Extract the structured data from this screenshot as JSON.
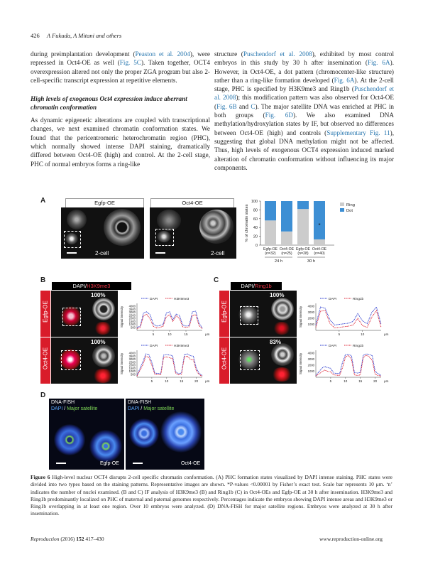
{
  "header": {
    "page_number": "426",
    "authors": "A Fukuda, A Mitani and others"
  },
  "left_col": {
    "p1_a": "during preimplantation development (",
    "p1_ref1": "Peaston et al. 2004",
    "p1_b": "), were repressed in Oct4-OE as well (",
    "p1_ref2": "Fig. 5C",
    "p1_c": "). Taken together, OCT4 overexpression altered not only the proper ZGA program but also 2-cell-specific transcript expression at repetitive elements.",
    "heading": "High levels of exogenous Oct4 expression induce aberrant chromatin conformation",
    "p2": "As dynamic epigenetic alterations are coupled with transcriptional changes, we next examined chromatin conformation states. We found that the pericentromeric heterochromatin region (PHC), which normally showed intense DAPI staining, dramatically differed between Oct4-OE (high) and control. At the 2-cell stage, PHC of normal embryos forms a ring-like"
  },
  "right_col": {
    "a": "structure (",
    "ref1": "Puschendorf et al. 2008",
    "b": "), exhibited by most control embryos in this study by 30 h after insemination (",
    "ref2": "Fig. 6A",
    "c": "). However, in Oct4-OE, a dot pattern (chromocenter-like structure) rather than a ring-like formation developed (",
    "ref3": "Fig. 6A",
    "d": "). At the 2-cell stage, PHC is specified by H3K9me3 and Ring1b (",
    "ref4": "Puschendorf et al. 2008",
    "e": "); this modification pattern was also observed for Oct4-OE (",
    "ref5": "Fig. 6B",
    "f": " and ",
    "ref6": "C",
    "g": "). The major satellite DNA was enriched at PHC in both groups (",
    "ref7": "Fig. 6D",
    "h": "). We also examined DNA methylation/hydroxylation states by IF, but observed no differences between Oct4-OE (high) and controls (",
    "ref8": "Supplementary Fig. 11",
    "i": "), suggesting that global DNA methylation might not be affected. Thus, high levels of exogenous OCT4 expression induced marked alteration of chromatin conformation without influencing its major components."
  },
  "figure": {
    "panel_a": {
      "letter": "A",
      "egfp_title": "Egfp-OE",
      "oct4_title": "Oct4-OE",
      "stage_label": "2-cell"
    },
    "panel_b": {
      "letter": "B",
      "title_dapi": "DAPI/",
      "title_mark": "H3K9me3",
      "row1": "Egfp-OE",
      "row2": "Oct4-OE",
      "pct1": "100%",
      "pct2": "100%"
    },
    "panel_c": {
      "letter": "C",
      "title_dapi": "DAPI/",
      "title_mark": "Ring1b",
      "row1": "Egfp-OE",
      "row2": "Oct4-OE",
      "pct1": "100%",
      "pct2": "83%"
    },
    "panel_d": {
      "letter": "D",
      "label1": "DNA-FISH",
      "label2_dapi": "DAPI",
      "label2_sep": " / ",
      "label2_sat": "Major satellite",
      "img1": "Egfp-OE",
      "img2": "Oct4-OE"
    },
    "colors": {
      "dapi_blue": "#2233cc",
      "mark_red": "#dd2233",
      "ring_grey": "#cccccc",
      "dot_blue": "#3d8fd4",
      "sat_green": "#7ed957"
    }
  },
  "chart_data": [
    {
      "type": "bar",
      "stacked": true,
      "ylabel": "% of chromatin states",
      "ylim": [
        0,
        100
      ],
      "yticks": [
        0,
        20,
        40,
        60,
        80,
        100
      ],
      "categories": [
        "Egfp-OE",
        "Oct4-OE",
        "Egfp-OE",
        "Oct4-OE"
      ],
      "n_labels": [
        "(n=32)",
        "(n=25)",
        "(n=28)",
        "(n=40)"
      ],
      "groups": [
        "24 h",
        "30 h"
      ],
      "series": [
        {
          "name": "Ring",
          "values": [
            56,
            31,
            82,
            13
          ]
        },
        {
          "name": "Dot",
          "values": [
            44,
            69,
            18,
            87
          ]
        }
      ],
      "annotation": "*",
      "legend": "top-right"
    },
    {
      "type": "line",
      "panel": "B-Egfp-OE",
      "ylabel": "Signal intensity",
      "xunit": "μm",
      "xticks": [
        5,
        10,
        15
      ],
      "yticks": [
        500,
        1000,
        1500,
        2000,
        2500,
        3000,
        3500,
        4000
      ],
      "ylim": [
        0,
        4500
      ],
      "xlim": [
        0,
        20
      ],
      "series": [
        {
          "name": "DAPI",
          "x": [
            0,
            1,
            2,
            3,
            4,
            5,
            6,
            7,
            8,
            9,
            10,
            11,
            12,
            13,
            14,
            15,
            16,
            17,
            18,
            19,
            20
          ],
          "y": [
            500,
            700,
            2900,
            3100,
            2600,
            1100,
            700,
            800,
            1000,
            2900,
            3100,
            1800,
            2700,
            2500,
            900,
            700,
            800,
            3100,
            3200,
            1200,
            400
          ]
        },
        {
          "name": "H3K9me3",
          "x": [
            0,
            1,
            2,
            3,
            4,
            5,
            6,
            7,
            8,
            9,
            10,
            11,
            12,
            13,
            14,
            15,
            16,
            17,
            18,
            19,
            20
          ],
          "y": [
            300,
            500,
            2400,
            2700,
            1900,
            700,
            400,
            500,
            700,
            2300,
            2600,
            1500,
            2400,
            2000,
            600,
            500,
            600,
            2500,
            2600,
            800,
            300
          ]
        }
      ]
    },
    {
      "type": "line",
      "panel": "B-Oct4-OE",
      "ylabel": "Signal intensity",
      "xunit": "μm",
      "xticks": [
        5,
        10,
        15,
        20
      ],
      "yticks": [
        500,
        1000,
        1500,
        2000,
        2500,
        3000,
        3500,
        4000
      ],
      "ylim": [
        0,
        4500
      ],
      "xlim": [
        0,
        22
      ],
      "series": [
        {
          "name": "DAPI",
          "x": [
            0,
            2,
            3,
            4,
            5,
            6,
            8,
            9,
            10,
            12,
            13,
            14,
            15,
            16,
            17,
            18,
            19,
            20,
            21,
            22
          ],
          "y": [
            300,
            2600,
            3900,
            3800,
            2500,
            700,
            600,
            3700,
            3800,
            3600,
            900,
            600,
            700,
            3800,
            3900,
            3600,
            3500,
            1500,
            600,
            300
          ]
        },
        {
          "name": "H3K9me3",
          "x": [
            0,
            2,
            3,
            4,
            5,
            6,
            8,
            9,
            10,
            12,
            13,
            14,
            15,
            16,
            17,
            18,
            19,
            20,
            21,
            22
          ],
          "y": [
            200,
            2100,
            3500,
            3300,
            2000,
            500,
            400,
            3300,
            3400,
            3100,
            700,
            400,
            500,
            3400,
            3500,
            3000,
            2900,
            1100,
            400,
            200
          ]
        }
      ]
    },
    {
      "type": "line",
      "panel": "C-Egfp-OE",
      "ylabel": "Signal intensity",
      "xunit": "μm",
      "xticks": [
        5,
        10
      ],
      "yticks": [
        1000,
        2000,
        3000,
        4000
      ],
      "ylim": [
        0,
        4500
      ],
      "xlim": [
        0,
        14
      ],
      "series": [
        {
          "name": "DAPI",
          "x": [
            0,
            1,
            2,
            3,
            4,
            5,
            6,
            7,
            8,
            9,
            10,
            11,
            12,
            13,
            14
          ],
          "y": [
            900,
            3900,
            3700,
            1800,
            900,
            1000,
            1100,
            1200,
            1500,
            2800,
            1600,
            1100,
            3000,
            3900,
            1000
          ]
        },
        {
          "name": "Ring1b",
          "x": [
            0,
            1,
            2,
            3,
            4,
            5,
            6,
            7,
            8,
            9,
            10,
            11,
            12,
            13,
            14
          ],
          "y": [
            500,
            3200,
            3300,
            1200,
            400,
            500,
            600,
            700,
            900,
            2000,
            800,
            500,
            2200,
            3300,
            500
          ]
        }
      ]
    },
    {
      "type": "line",
      "panel": "C-Oct4-OE",
      "ylabel": "Signal intensity",
      "xunit": "μm",
      "xticks": [
        5,
        10,
        15,
        20
      ],
      "yticks": [
        1000,
        2000,
        3000,
        4000
      ],
      "ylim": [
        0,
        4500
      ],
      "xlim": [
        0,
        22
      ],
      "series": [
        {
          "name": "DAPI",
          "x": [
            0,
            2,
            3,
            4,
            5,
            6,
            8,
            9,
            10,
            11,
            12,
            13,
            14,
            15,
            16,
            17,
            18,
            19,
            20,
            21,
            22
          ],
          "y": [
            300,
            1500,
            1800,
            1600,
            1500,
            700,
            600,
            2500,
            3800,
            3800,
            3600,
            800,
            700,
            800,
            3700,
            3900,
            3800,
            3600,
            1000,
            600,
            300
          ]
        },
        {
          "name": "Ring1b",
          "x": [
            0,
            2,
            3,
            4,
            5,
            6,
            8,
            9,
            10,
            11,
            12,
            13,
            14,
            15,
            16,
            17,
            18,
            19,
            20,
            21,
            22
          ],
          "y": [
            200,
            900,
            1200,
            1000,
            900,
            400,
            300,
            1600,
            3400,
            3600,
            3000,
            400,
            300,
            400,
            3300,
            3700,
            3400,
            2800,
            500,
            300,
            200
          ]
        }
      ]
    }
  ],
  "caption": {
    "label": "Figure 6",
    "text": " High-level nuclear OCT4 disrupts 2-cell specific chromatin conformation. (A) PHC formation states visualized by DAPI intense staining. PHC states were divided into two types based on the staining patterns. Representative images are shown. *P-values <0.00001 by Fisher’s exact test. Scale bar represents 10 μm. ‘n’ indicates the number of nuclei examined. (B and C) IF analysis of H3K9me3 (B) and Ring1b (C) in Oct4-OEs and Egfp-OE at 30 h after insemination. H3K9me3 and Ring1b predominantly localized on PHC of maternal and paternal genomes respectively. Percentages indicate the embryos showing DAPI intense areas and H3K9me3 or Ring1b overlapping in at least one region. Over 10 embryos were analyzed. (D) DNA-FISH for major satellite regions. Embryos were analyzed at 30 h after insemination."
  },
  "footer": {
    "journal": "Reproduction",
    "citation": " (2016) ",
    "volume": "152",
    "pages": " 417–430",
    "url": "www.reproduction-online.org"
  }
}
